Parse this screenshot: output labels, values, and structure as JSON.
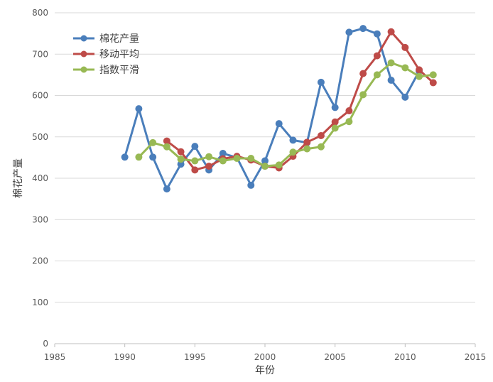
{
  "chart_data": {
    "type": "scatter",
    "xlabel": "年份",
    "ylabel": "棉花产量",
    "xlim": [
      1985,
      2015
    ],
    "ylim": [
      0,
      800
    ],
    "xticks": [
      1985,
      1990,
      1995,
      2000,
      2005,
      2010,
      2015
    ],
    "yticks": [
      0,
      100,
      200,
      300,
      400,
      500,
      600,
      700,
      800
    ],
    "grid": "horizontal",
    "legend_position": "top-left",
    "series": [
      {
        "name": "棉花产量",
        "color": "#4a7ebb",
        "x": [
          1990,
          1991,
          1992,
          1993,
          1994,
          1995,
          1996,
          1997,
          1998,
          1999,
          2000,
          2001,
          2002,
          2003,
          2004,
          2005,
          2006,
          2007,
          2008,
          2009,
          2010,
          2011
        ],
        "y": [
          451,
          568,
          451,
          374,
          434,
          477,
          420,
          460,
          450,
          383,
          442,
          532,
          492,
          486,
          632,
          571,
          753,
          762,
          749,
          637,
          596,
          659
        ]
      },
      {
        "name": "移动平均",
        "color": "#be4b48",
        "x": [
          1993,
          1994,
          1995,
          1996,
          1997,
          1998,
          1999,
          2000,
          2001,
          2002,
          2003,
          2004,
          2005,
          2006,
          2007,
          2008,
          2009,
          2010,
          2011,
          2012
        ],
        "y": [
          490,
          464,
          420,
          429,
          447,
          453,
          444,
          429,
          425,
          453,
          487,
          503,
          536,
          563,
          653,
          696,
          754,
          716,
          662,
          631
        ]
      },
      {
        "name": "指数平滑",
        "color": "#98b954",
        "x": [
          1991,
          1992,
          1993,
          1994,
          1995,
          1996,
          1997,
          1998,
          1999,
          2000,
          2001,
          2002,
          2003,
          2004,
          2005,
          2006,
          2007,
          2008,
          2009,
          2010,
          2011,
          2012
        ],
        "y": [
          451,
          486,
          476,
          446,
          442,
          452,
          442,
          448,
          448,
          429,
          432,
          463,
          471,
          476,
          521,
          537,
          602,
          650,
          679,
          667,
          646,
          650
        ]
      }
    ]
  }
}
